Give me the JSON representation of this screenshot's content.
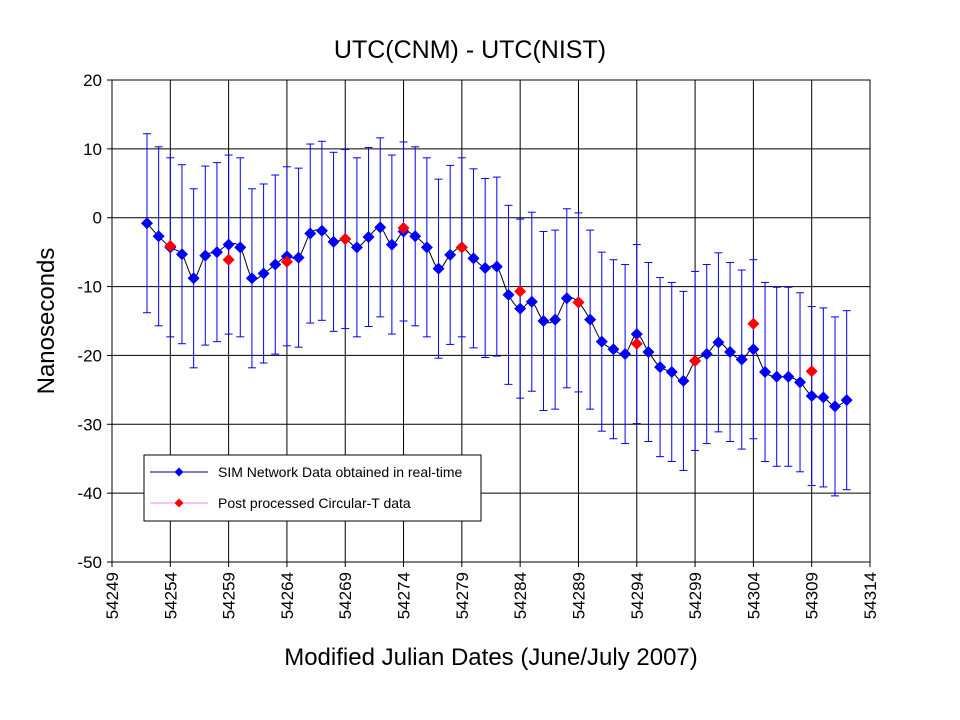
{
  "chart_data": {
    "type": "scatter",
    "title": "UTC(CNM) - UTC(NIST)",
    "xlabel": "Modified Julian Dates (June/July 2007)",
    "ylabel": "Nanoseconds",
    "xlim": [
      54249,
      54314
    ],
    "ylim": [
      -50,
      20
    ],
    "xticks": [
      54249,
      54254,
      54259,
      54264,
      54269,
      54274,
      54279,
      54284,
      54289,
      54294,
      54299,
      54304,
      54309,
      54314
    ],
    "yticks": [
      20,
      10,
      0,
      -10,
      -20,
      -30,
      -40,
      -50
    ],
    "grid": true,
    "legend_position": "lower-left",
    "series": [
      {
        "name": "SIM Network Data obtained in real-time",
        "color": "#0000ff",
        "marker": "diamond",
        "line": true,
        "error_bar_plus_minus": 13,
        "x": [
          54252,
          54253,
          54254,
          54255,
          54256,
          54257,
          54258,
          54259,
          54260,
          54261,
          54262,
          54263,
          54264,
          54265,
          54266,
          54267,
          54268,
          54269,
          54270,
          54271,
          54272,
          54273,
          54274,
          54275,
          54276,
          54277,
          54278,
          54279,
          54280,
          54281,
          54282,
          54283,
          54284,
          54285,
          54286,
          54287,
          54288,
          54289,
          54290,
          54291,
          54292,
          54293,
          54294,
          54295,
          54296,
          54297,
          54298,
          54299,
          54300,
          54301,
          54302,
          54303,
          54304,
          54305,
          54306,
          54307,
          54308,
          54309,
          54310,
          54311,
          54312
        ],
        "y": [
          -0.8,
          -2.7,
          -4.3,
          -5.3,
          -8.8,
          -5.5,
          -5.0,
          -3.9,
          -4.3,
          -8.8,
          -8.1,
          -6.8,
          -5.6,
          -5.8,
          -2.3,
          -1.9,
          -3.5,
          -3.1,
          -4.3,
          -2.8,
          -1.4,
          -3.9,
          -2.0,
          -2.7,
          -4.3,
          -7.4,
          -5.4,
          -4.3,
          -5.9,
          -7.3,
          -7.1,
          -11.2,
          -13.2,
          -12.2,
          -15.0,
          -14.8,
          -11.7,
          -12.3,
          -14.8,
          -18.0,
          -19.1,
          -19.8,
          -16.9,
          -19.5,
          -21.7,
          -22.4,
          -23.7,
          -20.8,
          -19.8,
          -18.1,
          -19.5,
          -20.6,
          -19.1,
          -22.4,
          -23.1,
          -23.1,
          -23.9,
          -25.9,
          -26.1,
          -27.4,
          -26.5
        ]
      },
      {
        "name": "Post processed Circular-T data",
        "color": "#ff0000",
        "marker": "diamond",
        "line": false,
        "x": [
          54254,
          54259,
          54264,
          54269,
          54274,
          54279,
          54284,
          54289,
          54294,
          54299,
          54304,
          54309
        ],
        "y": [
          -4.1,
          -6.1,
          -6.4,
          -3.1,
          -1.5,
          -4.3,
          -10.7,
          -12.3,
          -18.3,
          -20.8,
          -15.4,
          -22.3
        ]
      }
    ]
  }
}
